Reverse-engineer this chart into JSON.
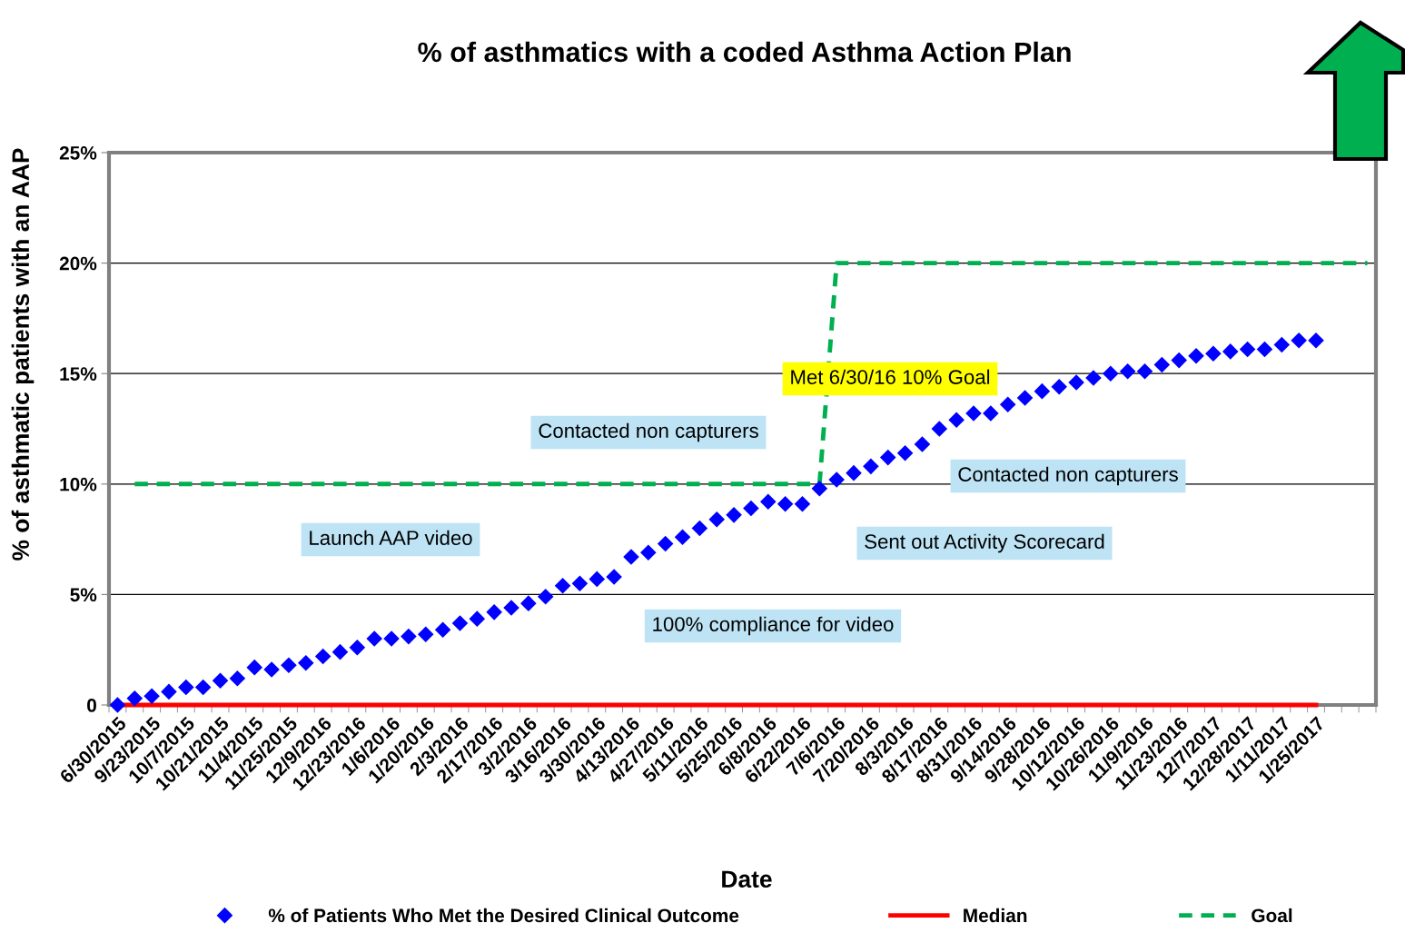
{
  "chart_data": {
    "type": "scatter",
    "title": "% of asthmatics with a coded Asthma Action Plan",
    "xlabel": "Date",
    "ylabel": "% of asthmatic patients with an AAP",
    "categories": [
      "6/30/2015",
      null,
      "9/23/2015",
      null,
      "10/7/2015",
      null,
      "10/21/2015",
      null,
      "11/4/2015",
      null,
      "11/25/2015",
      null,
      "12/9/2016",
      null,
      "12/23/2016",
      null,
      "1/6/2016",
      null,
      "1/20/2016",
      null,
      "2/3/2016",
      null,
      "2/17/2016",
      null,
      "3/2/2016",
      null,
      "3/16/2016",
      null,
      "3/30/2016",
      null,
      "4/13/2016",
      null,
      "4/27/2016",
      null,
      "5/11/2016",
      null,
      "5/25/2016",
      null,
      "6/8/2016",
      null,
      "6/22/2016",
      null,
      "7/6/2016",
      null,
      "7/20/2016",
      null,
      "8/3/2016",
      null,
      "8/17/2016",
      null,
      "8/31/2016",
      null,
      "9/14/2016",
      null,
      "9/28/2016",
      null,
      "10/12/2016",
      null,
      "10/26/2016",
      null,
      "11/9/2016",
      null,
      "11/23/2016",
      null,
      "12/7/2017",
      null,
      "12/28/2017",
      null,
      "1/11/2017",
      null,
      "1/25/2017",
      null,
      null,
      null
    ],
    "series": [
      {
        "name": "% of Patients Who Met the Desired Clinical Outcome",
        "color": "#0000ff",
        "marker": "diamond",
        "values": [
          0,
          0.3,
          0.4,
          0.6,
          0.8,
          0.8,
          1.1,
          1.2,
          1.7,
          1.6,
          1.8,
          1.9,
          2.2,
          2.4,
          2.6,
          3.0,
          3.0,
          3.1,
          3.2,
          3.4,
          3.7,
          3.9,
          4.2,
          4.4,
          4.6,
          4.9,
          5.4,
          5.5,
          5.7,
          5.8,
          6.7,
          6.9,
          7.3,
          7.6,
          8.0,
          8.4,
          8.6,
          8.9,
          9.2,
          9.1,
          9.1,
          9.8,
          10.2,
          10.5,
          10.8,
          11.2,
          11.4,
          11.8,
          12.5,
          12.9,
          13.2,
          13.2,
          13.6,
          13.9,
          14.2,
          14.4,
          14.6,
          14.8,
          15.0,
          15.1,
          15.1,
          15.4,
          15.6,
          15.8,
          15.9,
          16.0,
          16.1,
          16.1,
          16.3,
          16.5,
          16.5,
          null,
          null,
          null
        ]
      },
      {
        "name": "Median",
        "type": "line",
        "color": "#ff0000",
        "line_style": "solid",
        "values": [
          0,
          0,
          0,
          0,
          0,
          0,
          0,
          0,
          0,
          0,
          0,
          0,
          0,
          0,
          0,
          0,
          0,
          0,
          0,
          0,
          0,
          0,
          0,
          0,
          0,
          0,
          0,
          0,
          0,
          0,
          0,
          0,
          0,
          0,
          0,
          0,
          0,
          0,
          0,
          0,
          0,
          0,
          0,
          0,
          0,
          0,
          0,
          0,
          0,
          0,
          0,
          0,
          0,
          0,
          0,
          0,
          0,
          0,
          0,
          0,
          0,
          0,
          0,
          0,
          0,
          0,
          0,
          0,
          0,
          0,
          0,
          null,
          null,
          null
        ]
      },
      {
        "name": "Goal",
        "type": "line",
        "color": "#00b050",
        "line_style": "dashed",
        "values": [
          null,
          10,
          10,
          10,
          10,
          10,
          10,
          10,
          10,
          10,
          10,
          10,
          10,
          10,
          10,
          10,
          10,
          10,
          10,
          10,
          10,
          10,
          10,
          10,
          10,
          10,
          10,
          10,
          10,
          10,
          10,
          10,
          10,
          10,
          10,
          10,
          10,
          10,
          10,
          10,
          10,
          10,
          20,
          20,
          20,
          20,
          20,
          20,
          20,
          20,
          20,
          20,
          20,
          20,
          20,
          20,
          20,
          20,
          20,
          20,
          20,
          20,
          20,
          20,
          20,
          20,
          20,
          20,
          20,
          20,
          20,
          20,
          20,
          20
        ]
      }
    ],
    "ylim": [
      0,
      25
    ],
    "yticks": [
      0,
      {
        "value": 5,
        "label": "5%"
      },
      {
        "value": 10,
        "label": "10%"
      },
      {
        "value": 15,
        "label": "15%"
      },
      {
        "value": 20,
        "label": "20%"
      },
      {
        "value": 25,
        "label": "25%"
      }
    ],
    "grid": "y",
    "legend": "bottom",
    "annotations": [
      "Met 6/30/16 10% Goal",
      "Contacted non capturers",
      "Contacted non capturers",
      "Launch AAP video",
      "Sent out Activity Scorecard",
      "100% compliance for video"
    ]
  }
}
